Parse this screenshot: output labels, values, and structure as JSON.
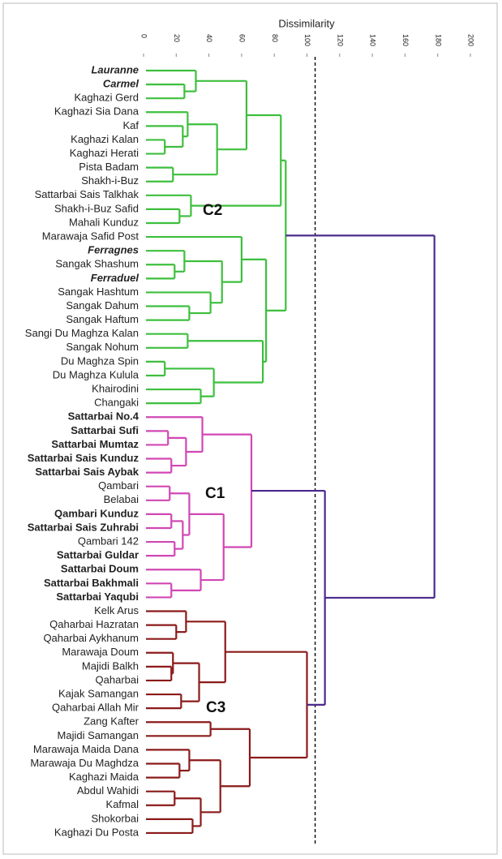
{
  "chart_data": {
    "type": "dendrogram",
    "title": "Dissimilarity",
    "xlim": [
      0,
      200
    ],
    "xticks": [
      0,
      20,
      40,
      60,
      80,
      100,
      120,
      140,
      160,
      180,
      200
    ],
    "cutoff": 105,
    "cutoff_color": "#000000",
    "tree": {
      "height": 178,
      "color": "#4b2a8c",
      "children": [
        {
          "height": 87,
          "color": "#3dbf3d",
          "cluster": "C2",
          "children": [
            {
              "height": 84,
              "children": [
                {
                  "height": 63,
                  "children": [
                    {
                      "height": 32,
                      "children": [
                        {
                          "label": "Lauranne",
                          "font": "bold italic"
                        },
                        {
                          "height": 25,
                          "children": [
                            {
                              "label": "Carmel",
                              "font": "bold italic"
                            },
                            {
                              "label": "Kaghazi Gerd"
                            }
                          ]
                        }
                      ]
                    },
                    {
                      "height": 45,
                      "children": [
                        {
                          "height": 27,
                          "children": [
                            {
                              "label": "Kaghazi Sia Dana"
                            },
                            {
                              "height": 24,
                              "children": [
                                {
                                  "label": "Kaf"
                                },
                                {
                                  "height": 13,
                                  "children": [
                                    {
                                      "label": "Kaghazi Kalan"
                                    },
                                    {
                                      "label": "Kaghazi Herati"
                                    }
                                  ]
                                }
                              ]
                            }
                          ]
                        },
                        {
                          "height": 18,
                          "children": [
                            {
                              "label": "Pista Badam"
                            },
                            {
                              "label": "Shakh-i-Buz"
                            }
                          ]
                        }
                      ]
                    }
                  ]
                },
                {
                  "height": 29,
                  "children": [
                    {
                      "label": "Sattarbai Sais Talkhak"
                    },
                    {
                      "height": 22,
                      "children": [
                        {
                          "label": "Shakh-i-Buz Safid"
                        },
                        {
                          "label": "Mahali Kunduz"
                        }
                      ]
                    }
                  ]
                }
              ]
            },
            {
              "height": 75,
              "children": [
                {
                  "height": 60,
                  "children": [
                    {
                      "label": "Marawaja Safid Post"
                    },
                    {
                      "height": 48,
                      "children": [
                        {
                          "height": 25,
                          "children": [
                            {
                              "label": "Ferragnes",
                              "font": "bold italic"
                            },
                            {
                              "height": 19,
                              "children": [
                                {
                                  "label": "Sangak Shashum"
                                },
                                {
                                  "label": "Ferraduel",
                                  "font": "bold italic"
                                }
                              ]
                            }
                          ]
                        },
                        {
                          "height": 41,
                          "children": [
                            {
                              "label": "Sangak Hashtum"
                            },
                            {
                              "height": 28,
                              "children": [
                                {
                                  "label": "Sangak Dahum"
                                },
                                {
                                  "label": "Sangak Haftum"
                                }
                              ]
                            }
                          ]
                        }
                      ]
                    }
                  ]
                },
                {
                  "height": 73,
                  "children": [
                    {
                      "height": 27,
                      "children": [
                        {
                          "label": "Sangi Du Maghza Kalan"
                        },
                        {
                          "label": "Sangak Nohum"
                        }
                      ]
                    },
                    {
                      "height": 43,
                      "children": [
                        {
                          "height": 13,
                          "children": [
                            {
                              "label": "Du Maghza Spin"
                            },
                            {
                              "label": "Du Maghza Kulula"
                            }
                          ]
                        },
                        {
                          "height": 35,
                          "children": [
                            {
                              "label": "Khairodini"
                            },
                            {
                              "label": "Changaki"
                            }
                          ]
                        }
                      ]
                    }
                  ]
                }
              ]
            }
          ]
        },
        {
          "height": 111,
          "children": [
            {
              "height": 66,
              "color": "#d147b4",
              "cluster": "C1",
              "children": [
                {
                  "height": 36,
                  "children": [
                    {
                      "label": "Sattarbai No.4",
                      "font": "bold"
                    },
                    {
                      "height": 26,
                      "children": [
                        {
                          "height": 15,
                          "children": [
                            {
                              "label": "Sattarbai Sufi",
                              "font": "bold"
                            },
                            {
                              "label": "Sattarbai Mumtaz",
                              "font": "bold"
                            }
                          ]
                        },
                        {
                          "height": 17,
                          "children": [
                            {
                              "label": "Sattarbai Sais Kunduz",
                              "font": "bold"
                            },
                            {
                              "label": "Sattarbai Sais Aybak",
                              "font": "bold"
                            }
                          ]
                        }
                      ]
                    }
                  ]
                },
                {
                  "height": 49,
                  "children": [
                    {
                      "height": 28,
                      "children": [
                        {
                          "height": 16,
                          "children": [
                            {
                              "label": "Qambari"
                            },
                            {
                              "label": "Belabai"
                            }
                          ]
                        },
                        {
                          "height": 24,
                          "children": [
                            {
                              "height": 17,
                              "children": [
                                {
                                  "label": "Qambari Kunduz",
                                  "font": "bold"
                                },
                                {
                                  "label": "Sattarbai Sais Zuhrabi",
                                  "font": "bold"
                                }
                              ]
                            },
                            {
                              "height": 19,
                              "children": [
                                {
                                  "label": "Qambari 142"
                                },
                                {
                                  "label": "Sattarbai Guldar",
                                  "font": "bold"
                                }
                              ]
                            }
                          ]
                        }
                      ]
                    },
                    {
                      "height": 35,
                      "children": [
                        {
                          "label": "Sattarbai Doum",
                          "font": "bold"
                        },
                        {
                          "height": 17,
                          "children": [
                            {
                              "label": "Sattarbai Bakhmali",
                              "font": "bold"
                            },
                            {
                              "label": "Sattarbai Yaqubi",
                              "font": "bold"
                            }
                          ]
                        }
                      ]
                    }
                  ]
                }
              ]
            },
            {
              "height": 100,
              "color": "#8b1a1a",
              "cluster": "C3",
              "children": [
                {
                  "height": 50,
                  "children": [
                    {
                      "height": 26,
                      "children": [
                        {
                          "label": "Kelk Arus"
                        },
                        {
                          "height": 20,
                          "children": [
                            {
                              "label": "Qaharbai Hazratan"
                            },
                            {
                              "label": "Qaharbai Aykhanum"
                            }
                          ]
                        }
                      ]
                    },
                    {
                      "height": 34,
                      "children": [
                        {
                          "height": 18,
                          "children": [
                            {
                              "label": "Marawaja Doum"
                            },
                            {
                              "height": 17,
                              "children": [
                                {
                                  "label": "Majidi Balkh"
                                },
                                {
                                  "label": "Qaharbai"
                                }
                              ]
                            }
                          ]
                        },
                        {
                          "height": 23,
                          "children": [
                            {
                              "label": "Kajak Samangan"
                            },
                            {
                              "label": "Qaharbai Allah Mir"
                            }
                          ]
                        }
                      ]
                    }
                  ]
                },
                {
                  "height": 65,
                  "children": [
                    {
                      "height": 41,
                      "children": [
                        {
                          "label": "Zang Kafter"
                        },
                        {
                          "label": "Majidi Samangan"
                        }
                      ]
                    },
                    {
                      "height": 47,
                      "children": [
                        {
                          "height": 28,
                          "children": [
                            {
                              "label": "Marawaja Maida Dana"
                            },
                            {
                              "height": 22,
                              "children": [
                                {
                                  "label": "Marawaja Du Maghdza"
                                },
                                {
                                  "label": "Kaghazi Maida"
                                }
                              ]
                            }
                          ]
                        },
                        {
                          "height": 35,
                          "children": [
                            {
                              "height": 19,
                              "children": [
                                {
                                  "label": "Abdul Wahidi"
                                },
                                {
                                  "label": "Kafmal"
                                }
                              ]
                            },
                            {
                              "height": 30,
                              "children": [
                                {
                                  "label": "Shokorbai"
                                },
                                {
                                  "label": "Kaghazi Du Posta"
                                }
                              ]
                            }
                          ]
                        }
                      ]
                    }
                  ]
                }
              ]
            }
          ]
        }
      ]
    }
  }
}
